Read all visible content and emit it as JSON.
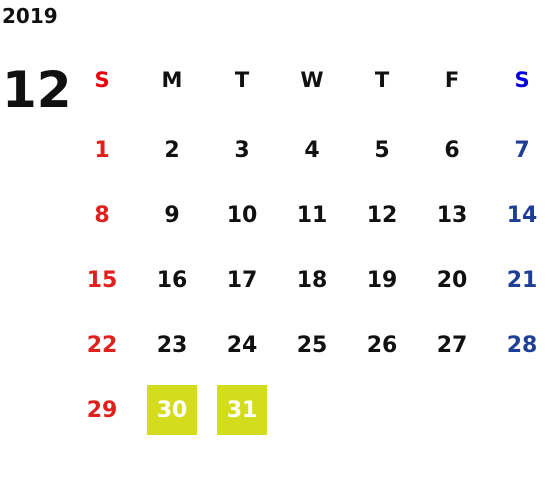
{
  "year": "2019",
  "month": "12",
  "weekdays": [
    "S",
    "M",
    "T",
    "W",
    "T",
    "F",
    "S"
  ],
  "weeks": [
    [
      {
        "day": "1"
      },
      {
        "day": "2"
      },
      {
        "day": "3"
      },
      {
        "day": "4"
      },
      {
        "day": "5"
      },
      {
        "day": "6"
      },
      {
        "day": "7"
      }
    ],
    [
      {
        "day": "8"
      },
      {
        "day": "9"
      },
      {
        "day": "10"
      },
      {
        "day": "11"
      },
      {
        "day": "12"
      },
      {
        "day": "13"
      },
      {
        "day": "14"
      }
    ],
    [
      {
        "day": "15"
      },
      {
        "day": "16"
      },
      {
        "day": "17"
      },
      {
        "day": "18"
      },
      {
        "day": "19"
      },
      {
        "day": "20"
      },
      {
        "day": "21"
      }
    ],
    [
      {
        "day": "22"
      },
      {
        "day": "23"
      },
      {
        "day": "24"
      },
      {
        "day": "25"
      },
      {
        "day": "26"
      },
      {
        "day": "27"
      },
      {
        "day": "28"
      }
    ],
    [
      {
        "day": "29"
      },
      {
        "day": "30",
        "highlight": true
      },
      {
        "day": "31",
        "highlight": true
      }
    ]
  ]
}
